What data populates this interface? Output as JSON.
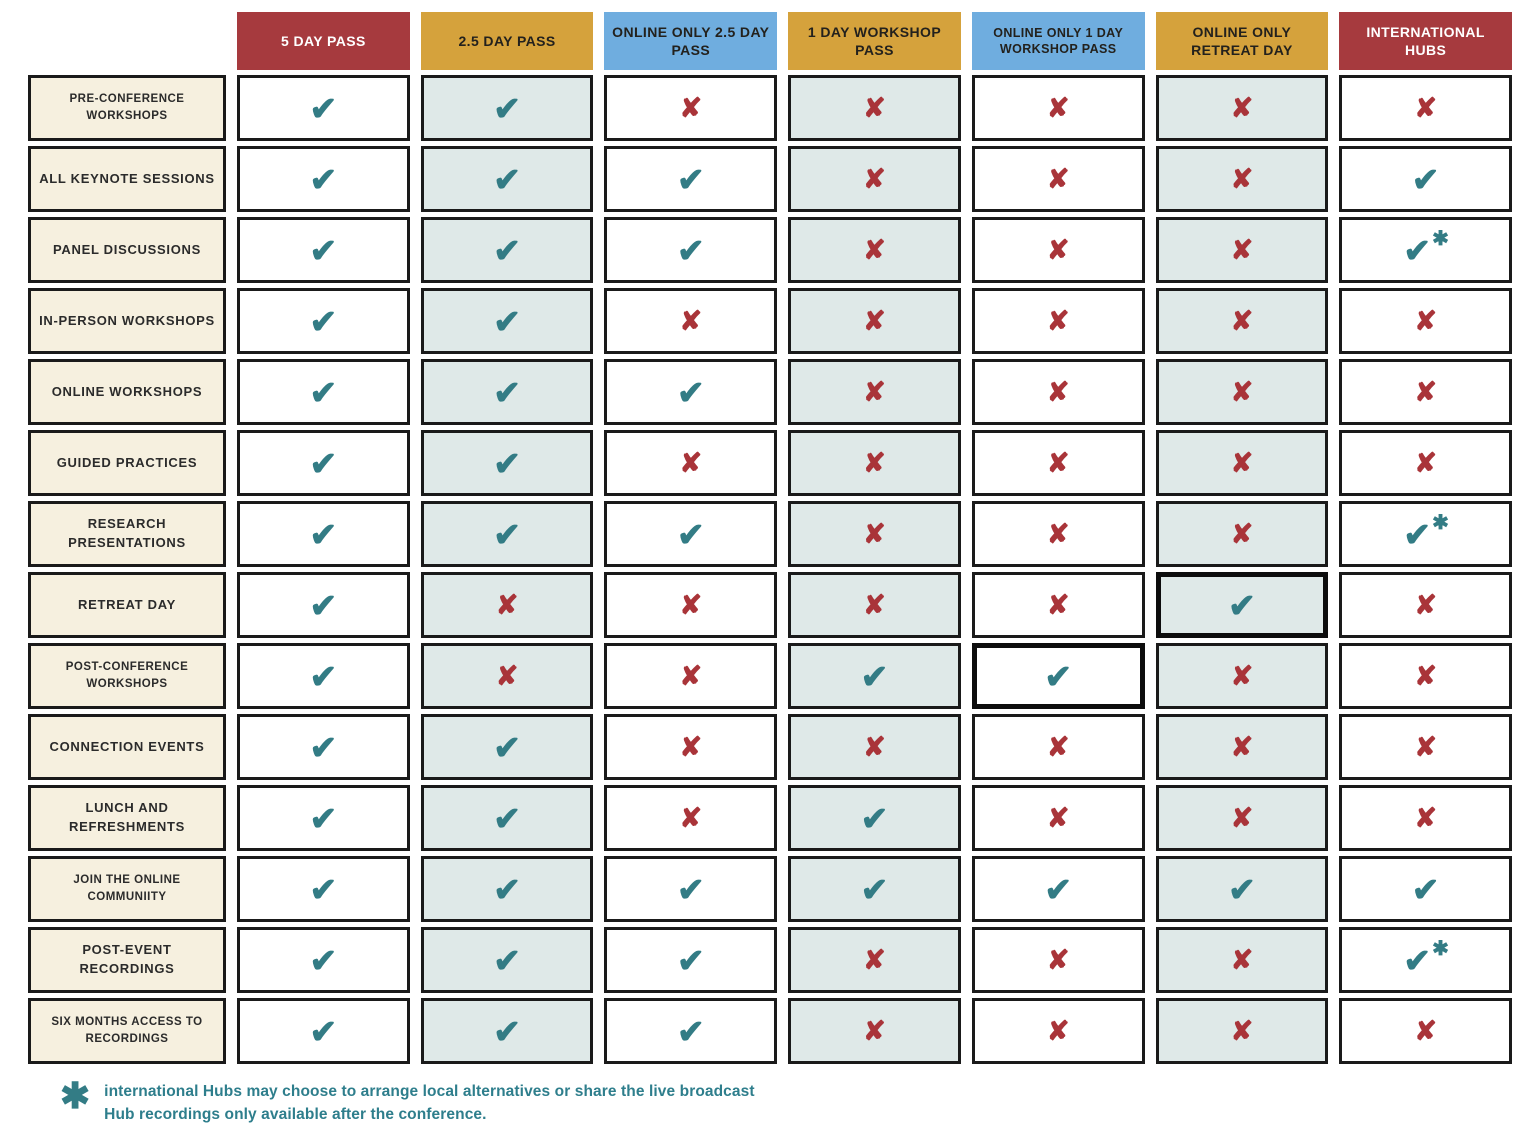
{
  "palette": {
    "header_red": "#A63A3E",
    "header_gold": "#D5A23C",
    "header_blue": "#6FADDF",
    "check_teal": "#337C85",
    "x_red": "#A93439",
    "shaded_cell_bg": "#DFE9E8",
    "row_label_bg": "#F6F0DF",
    "cell_border": "#1a1a1a"
  },
  "icons": {
    "check": "✔",
    "x": "✘",
    "asterisk": "✱"
  },
  "columns": [
    {
      "label": "5 DAY PASS",
      "color": "red",
      "shaded": false
    },
    {
      "label": "2.5 DAY PASS",
      "color": "gold",
      "shaded": true
    },
    {
      "label": "ONLINE ONLY 2.5 DAY PASS",
      "color": "blue",
      "shaded": false
    },
    {
      "label": "1 DAY WORKSHOP PASS",
      "color": "gold",
      "shaded": true
    },
    {
      "label": "ONLINE ONLY 1 DAY WORKSHOP PASS",
      "color": "blue",
      "shaded": false
    },
    {
      "label": "ONLINE ONLY RETREAT DAY",
      "color": "gold",
      "shaded": true
    },
    {
      "label": "INTERNATIONAL HUBS",
      "color": "red",
      "shaded": false
    }
  ],
  "rows": [
    {
      "label": "PRE-CONFERENCE WORKSHOPS",
      "cells": [
        "check",
        "check",
        "x",
        "x",
        "x",
        "x",
        "x"
      ]
    },
    {
      "label": "ALL KEYNOTE SESSIONS",
      "cells": [
        "check",
        "check",
        "check",
        "x",
        "x",
        "x",
        "check"
      ]
    },
    {
      "label": "PANEL DISCUSSIONS",
      "cells": [
        "check",
        "check",
        "check",
        "x",
        "x",
        "x",
        "check-note"
      ]
    },
    {
      "label": "IN-PERSON WORKSHOPS",
      "cells": [
        "check",
        "check",
        "x",
        "x",
        "x",
        "x",
        "x"
      ]
    },
    {
      "label": "ONLINE WORKSHOPS",
      "cells": [
        "check",
        "check",
        "check",
        "x",
        "x",
        "x",
        "x"
      ]
    },
    {
      "label": "GUIDED PRACTICES",
      "cells": [
        "check",
        "check",
        "x",
        "x",
        "x",
        "x",
        "x"
      ]
    },
    {
      "label": "RESEARCH PRESENTATIONS",
      "cells": [
        "check",
        "check",
        "check",
        "x",
        "x",
        "x",
        "check-note"
      ]
    },
    {
      "label": "RETREAT DAY",
      "cells": [
        "check",
        "x",
        "x",
        "x",
        "x",
        "check-highlight",
        "x"
      ]
    },
    {
      "label": "POST-CONFERENCE WORKSHOPS",
      "cells": [
        "check",
        "x",
        "x",
        "check",
        "check-highlight",
        "x",
        "x"
      ]
    },
    {
      "label": "CONNECTION EVENTS",
      "cells": [
        "check",
        "check",
        "x",
        "x",
        "x",
        "x",
        "x"
      ]
    },
    {
      "label": "LUNCH AND REFRESHMENTS",
      "cells": [
        "check",
        "check",
        "x",
        "check",
        "x",
        "x",
        "x"
      ]
    },
    {
      "label": "JOIN THE ONLINE COMMUNIITY",
      "cells": [
        "check",
        "check",
        "check",
        "check",
        "check",
        "check",
        "check"
      ]
    },
    {
      "label": "POST-EVENT RECORDINGS",
      "cells": [
        "check",
        "check",
        "check",
        "x",
        "x",
        "x",
        "check-note"
      ]
    },
    {
      "label": "SIX MONTHS ACCESS TO RECORDINGS",
      "cells": [
        "check",
        "check",
        "check",
        "x",
        "x",
        "x",
        "x"
      ]
    }
  ],
  "footnote": {
    "line1": "international Hubs may choose to arrange local alternatives or share the live broadcast",
    "line2": "Hub recordings only available after the conference."
  }
}
